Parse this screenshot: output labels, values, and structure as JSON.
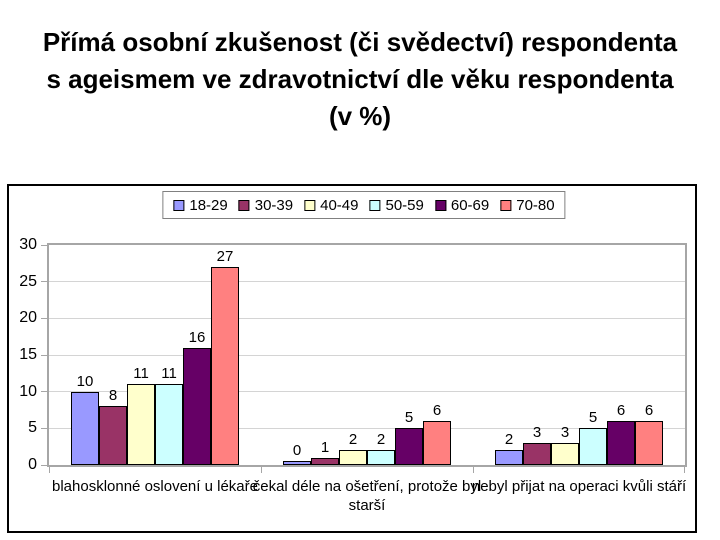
{
  "title_lines": [
    "Přímá osobní zkušenost (či svědectví) respondenta",
    "s ageismem ve zdravotnictví dle věku respondenta",
    "(v %)"
  ],
  "chart_data": {
    "type": "bar",
    "title": "Přímá osobní zkušenost (či svědectví) respondenta s ageismem ve zdravotnictví dle věku respondenta (v %)",
    "categories": [
      "blahosklonné oslovení u lékaře",
      "čekal déle na ošetření, protože byl starší",
      "nebyl přijat na operaci kvůli stáří"
    ],
    "series": [
      {
        "name": "18-29",
        "color": "#9999FF",
        "values": [
          10,
          0,
          2
        ]
      },
      {
        "name": "30-39",
        "color": "#993366",
        "values": [
          8,
          1,
          3
        ]
      },
      {
        "name": "40-49",
        "color": "#FFFFCC",
        "values": [
          11,
          2,
          3
        ]
      },
      {
        "name": "50-59",
        "color": "#CCFFFF",
        "values": [
          11,
          2,
          5
        ]
      },
      {
        "name": "60-69",
        "color": "#660066",
        "values": [
          16,
          5,
          6
        ]
      },
      {
        "name": "70-80",
        "color": "#FF8080",
        "values": [
          27,
          6,
          6
        ]
      }
    ],
    "xlabel": "",
    "ylabel": "",
    "ylim": [
      0,
      30
    ],
    "yticks": [
      0,
      5,
      10,
      15,
      20,
      25,
      30
    ],
    "grid": true,
    "legend_position": "top",
    "colors": {
      "bar_border": "#000000",
      "plot_border": "#A6A6A6",
      "gridline": "#D4D4D4",
      "chart_border": "#000000",
      "text": "#000000",
      "background": "#FFFFFF"
    }
  }
}
